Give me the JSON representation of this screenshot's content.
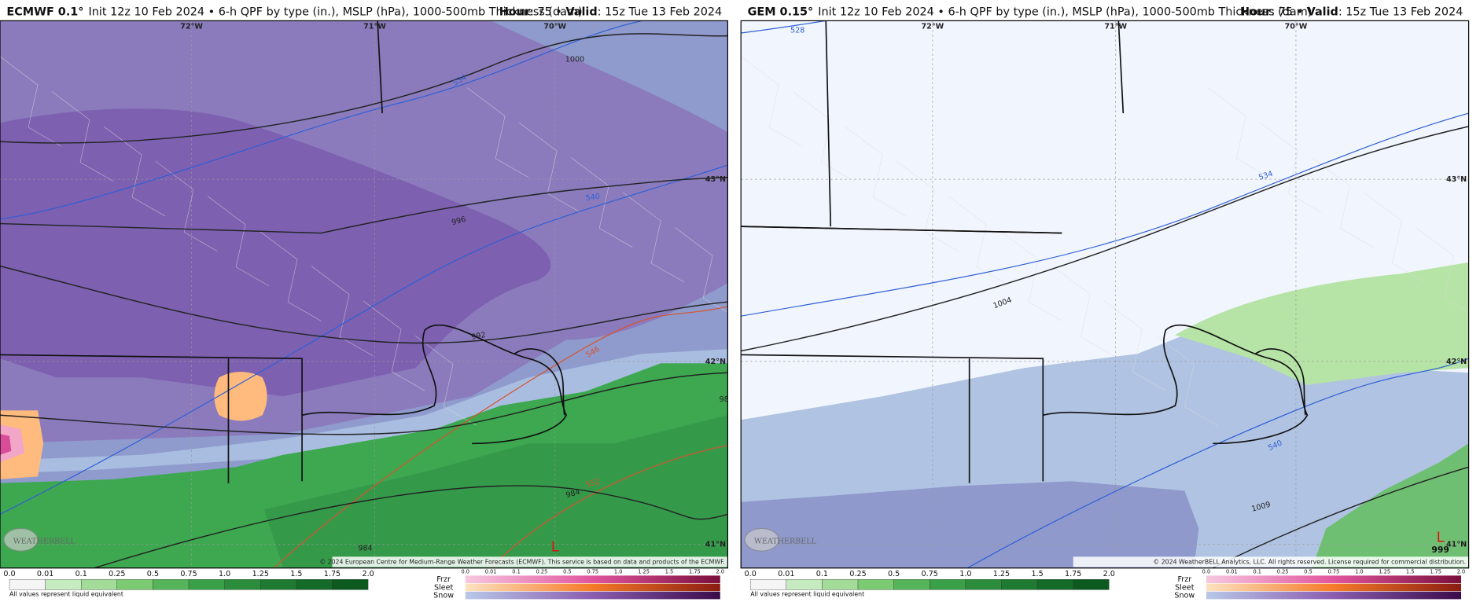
{
  "panels": [
    {
      "header": {
        "model": "ECMWF 0.1°",
        "description": "Init 12z 10 Feb 2024 • 6-h QPF by type (in.), MSLP (hPa), 1000-500mb Thickness (dam)",
        "hour_label": "Hour",
        "hour": ": 75 • ",
        "valid_label": "Valid",
        "valid": ": 15z Tue 13 Feb 2024"
      },
      "longitudes": [
        "72°W",
        "71°W",
        "70°W"
      ],
      "latitudes": [
        "43°N",
        "42°N",
        "41°N"
      ],
      "contour_labels": [
        "534",
        "1000",
        "540",
        "996",
        "992",
        "546",
        "98",
        "552",
        "984",
        "984"
      ],
      "low_marker": "L",
      "copyright": "© 2024 European Centre for Medium-Range Weather Forecasts (ECMWF). This service is based on data and products of the ECMWF."
    },
    {
      "header": {
        "model": "GEM 0.15°",
        "description": "Init 12z 10 Feb 2024 • 6-h QPF by type (in.), MSLP (hPa), 1000-500mb Thickness (dam)",
        "hour_label": "Hour",
        "hour": ": 75 • ",
        "valid_label": "Valid",
        "valid": ": 15z Tue 13 Feb 2024"
      },
      "longitudes": [
        "72°W",
        "71°W",
        "70°W"
      ],
      "latitudes": [
        "43°N",
        "42°N",
        "41°N"
      ],
      "contour_labels": [
        "528",
        "534",
        "1004",
        "540",
        "1009"
      ],
      "low_marker": "L",
      "low_pressure": "999",
      "copyright": "© 2024 WeatherBELL Analytics, LLC. All rights reserved. License required for commercial distribution."
    }
  ],
  "logo": "WEATHERBELL",
  "legend": {
    "qpf_ticks": [
      "0.0",
      "0.01",
      "0.1",
      "0.25",
      "0.5",
      "0.75",
      "1.0",
      "1.25",
      "1.5",
      "1.75",
      "2.0"
    ],
    "note": "All values represent liquid equivalent",
    "precip_types": [
      "Frzr",
      "Sleet",
      "Snow"
    ]
  }
}
